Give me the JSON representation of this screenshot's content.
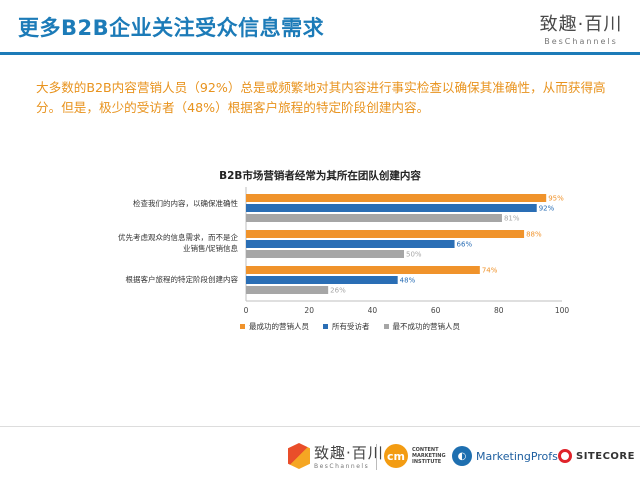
{
  "header": {
    "title": "更多B2B企业关注受众信息需求",
    "brand_name": "致趣·百川",
    "brand_sub": "BesChannels"
  },
  "summary": "大多数的B2B内容营销人员（92%）总是或频繁地对其内容进行事实检查以确保其准确性，从而获得高分。但是，极少的受访者（48%）根据客户旅程的特定阶段创建内容。",
  "chart_data": {
    "type": "bar",
    "orientation": "horizontal",
    "title": "B2B市场营销者经常为其所在团队创建内容",
    "categories": [
      "检查我们的内容，以确保准确性",
      "优先考虑观众的信息需求，而不是企业销售/促销信息",
      "根据客户旅程的特定阶段创建内容"
    ],
    "category_lines": [
      [
        "检查我们的内容，以确保准确性"
      ],
      [
        "优先考虑观众的信息需求，而不是企",
        "业销售/促销信息"
      ],
      [
        "根据客户旅程的特定阶段创建内容"
      ]
    ],
    "series": [
      {
        "name": "最成功的营销人员",
        "color": "#f0932b",
        "values": [
          95,
          88,
          74
        ]
      },
      {
        "name": "所有受访者",
        "color": "#2a6eb5",
        "values": [
          92,
          66,
          48
        ]
      },
      {
        "name": "最不成功的营销人员",
        "color": "#a6a6a6",
        "values": [
          81,
          50,
          26
        ]
      }
    ],
    "xlim": [
      0,
      100
    ],
    "xticks": [
      0,
      20,
      40,
      60,
      80,
      100
    ],
    "value_suffix": "%",
    "legend_position": "bottom",
    "grid": false
  },
  "footer": {
    "bes_name": "致趣·百川",
    "bes_sub": "BesChannels",
    "cmi_mark": "cm",
    "cmi_lines": [
      "CONTENT",
      "MARKETING",
      "INSTITUTE"
    ],
    "mp_name": "MarketingProfs",
    "sc_name": "SITECORE"
  }
}
